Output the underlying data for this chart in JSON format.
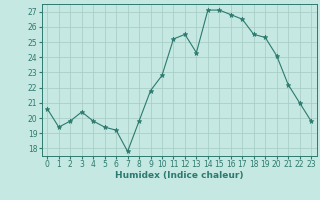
{
  "x": [
    0,
    1,
    2,
    3,
    4,
    5,
    6,
    7,
    8,
    9,
    10,
    11,
    12,
    13,
    14,
    15,
    16,
    17,
    18,
    19,
    20,
    21,
    22,
    23
  ],
  "y": [
    20.6,
    19.4,
    19.8,
    20.4,
    19.8,
    19.4,
    19.2,
    17.8,
    19.8,
    21.8,
    22.8,
    25.2,
    25.5,
    24.3,
    27.1,
    27.1,
    26.8,
    26.5,
    25.5,
    25.3,
    24.1,
    22.2,
    21.0,
    19.8
  ],
  "line_color": "#2d7a6e",
  "marker": "*",
  "marker_size": 3.5,
  "bg_color": "#c5e8e2",
  "grid_color": "#aacfc9",
  "xlabel": "Humidex (Indice chaleur)",
  "ylim": [
    17.5,
    27.5
  ],
  "yticks": [
    18,
    19,
    20,
    21,
    22,
    23,
    24,
    25,
    26,
    27
  ],
  "xticks": [
    0,
    1,
    2,
    3,
    4,
    5,
    6,
    7,
    8,
    9,
    10,
    11,
    12,
    13,
    14,
    15,
    16,
    17,
    18,
    19,
    20,
    21,
    22,
    23
  ],
  "label_fontsize": 6.5,
  "tick_fontsize": 5.5
}
